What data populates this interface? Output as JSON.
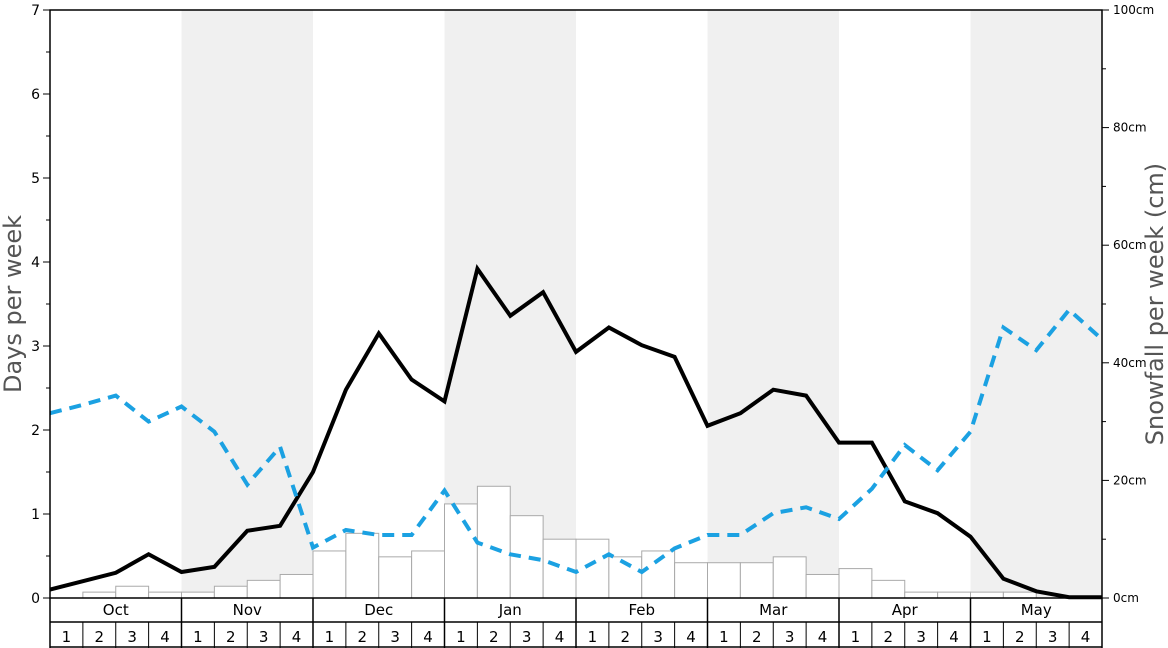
{
  "chart_data": {
    "type": "bar+line",
    "ylabel_left": "Days per week",
    "ylabel_right": "Snowfall per week (cm)",
    "ylim_left": [
      0,
      7
    ],
    "ylim_right": [
      0,
      100
    ],
    "yticks_left": [
      "0",
      "1",
      "2",
      "3",
      "4",
      "5",
      "6",
      "7"
    ],
    "yticks_right": [
      "0cm",
      "20cm",
      "40cm",
      "60cm",
      "80cm",
      "100cm"
    ],
    "months": [
      "Oct",
      "Nov",
      "Dec",
      "Jan",
      "Feb",
      "Mar",
      "Apr",
      "May"
    ],
    "week_labels": [
      "1",
      "2",
      "3",
      "4"
    ],
    "colors": {
      "shade": "#f0f0f0",
      "bar_fill": "#ffffff",
      "bar_stroke": "#aaaaaa",
      "solid_line": "#000000",
      "dashed_line": "#1ba1e2"
    },
    "snowfall_cm": [
      0,
      1,
      2,
      1,
      1,
      2,
      3,
      4,
      8,
      11,
      7,
      8,
      16,
      19,
      14,
      10,
      10,
      7,
      8,
      6,
      6,
      6,
      7,
      4,
      5,
      3,
      1,
      1,
      1,
      1,
      0,
      0
    ],
    "solid_series_days": [
      0.1,
      0.2,
      0.3,
      0.52,
      0.31,
      0.37,
      0.8,
      0.86,
      1.5,
      2.48,
      3.15,
      2.6,
      2.34,
      3.92,
      3.36,
      3.64,
      2.93,
      3.22,
      3.01,
      2.87,
      2.05,
      2.2,
      2.48,
      2.41,
      1.85,
      1.85,
      1.15,
      1.01,
      0.73,
      0.23,
      0.08,
      0.01,
      0.01
    ],
    "dashed_series_days": [
      2.2,
      2.3,
      2.41,
      2.1,
      2.28,
      1.98,
      1.35,
      1.8,
      0.6,
      0.81,
      0.75,
      0.75,
      1.28,
      0.66,
      0.52,
      0.45,
      0.31,
      0.52,
      0.31,
      0.59,
      0.75,
      0.75,
      1.01,
      1.08,
      0.94,
      1.3,
      1.82,
      1.52,
      1.98,
      3.22,
      2.95,
      3.43,
      3.08
    ]
  }
}
